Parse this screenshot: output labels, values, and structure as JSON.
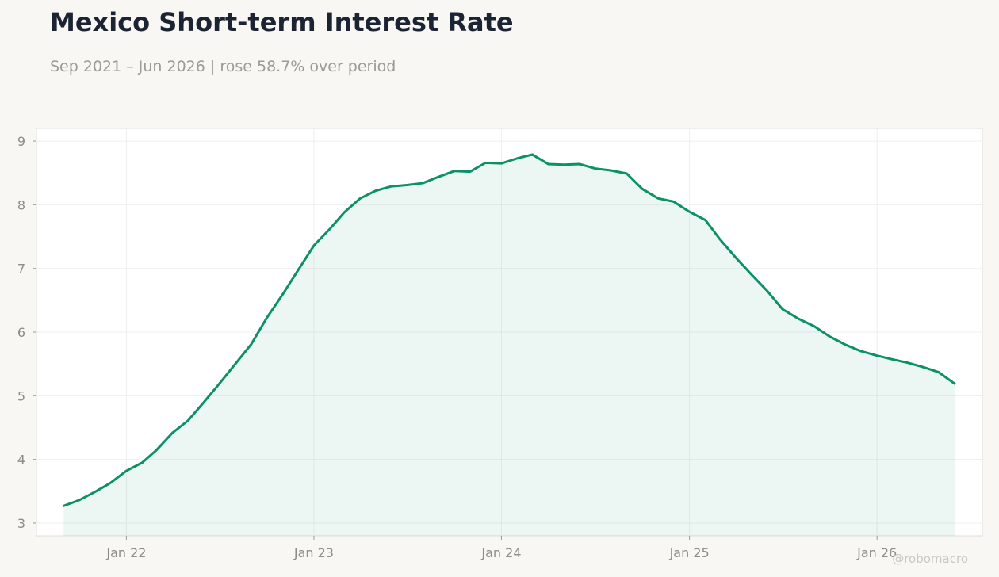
{
  "title": "Mexico Short-term Interest Rate",
  "subtitle": "Sep 2021 – Jun 2026 | rose 58.7% over period",
  "watermark": "@robomacro",
  "colors": {
    "line": "#0a9167",
    "fill": "#0a9167",
    "background": "#f8f7f4",
    "plot_background": "#ffffff",
    "grid": "#efefef",
    "axis": "#dcdcd8"
  },
  "chart_data": {
    "type": "area",
    "title": "Mexico Short-term Interest Rate",
    "subtitle": "Sep 2021 – Jun 2026 | rose 58.7% over period",
    "xlabel": "",
    "ylabel": "",
    "ylim": [
      2.8,
      9.2
    ],
    "xlim": [
      "2021-07-10",
      "2026-07-25"
    ],
    "grid": true,
    "y_ticks": [
      3,
      4,
      5,
      6,
      7,
      8,
      9
    ],
    "x_ticks": [
      {
        "date": "2022-01-01",
        "label": "Jan 22"
      },
      {
        "date": "2023-01-01",
        "label": "Jan 23"
      },
      {
        "date": "2024-01-01",
        "label": "Jan 24"
      },
      {
        "date": "2025-01-01",
        "label": "Jan 25"
      },
      {
        "date": "2026-01-01",
        "label": "Jan 26"
      }
    ],
    "series": [
      {
        "x": [
          "2021-09-01",
          "2021-10-01",
          "2021-11-01",
          "2021-12-01",
          "2022-01-01",
          "2022-02-01",
          "2022-03-01",
          "2022-04-01",
          "2022-05-01",
          "2022-06-01",
          "2022-07-01",
          "2022-08-01",
          "2022-09-01",
          "2022-10-01",
          "2022-11-01",
          "2022-12-01",
          "2023-01-01",
          "2023-02-01",
          "2023-03-01",
          "2023-04-01",
          "2023-05-01",
          "2023-06-01",
          "2023-07-01",
          "2023-08-01",
          "2023-09-01",
          "2023-10-01",
          "2023-11-01",
          "2023-12-01",
          "2024-01-01",
          "2024-02-01",
          "2024-03-01",
          "2024-04-01",
          "2024-05-01",
          "2024-06-01",
          "2024-07-01",
          "2024-08-01",
          "2024-09-01",
          "2024-10-01",
          "2024-11-01",
          "2024-12-01",
          "2025-01-01",
          "2025-02-01",
          "2025-03-01",
          "2025-04-01",
          "2025-05-01",
          "2025-06-01",
          "2025-07-01",
          "2025-08-01",
          "2025-09-01",
          "2025-10-01",
          "2025-11-01",
          "2025-12-01",
          "2026-01-01",
          "2026-02-01",
          "2026-03-01",
          "2026-04-01",
          "2026-05-01",
          "2026-06-01"
        ],
        "values": [
          3.27,
          3.36,
          3.49,
          3.63,
          3.82,
          3.95,
          4.15,
          4.42,
          4.61,
          4.9,
          5.19,
          5.5,
          5.81,
          6.22,
          6.59,
          6.97,
          7.36,
          7.62,
          7.88,
          8.1,
          8.22,
          8.29,
          8.31,
          8.34,
          8.44,
          8.53,
          8.52,
          8.66,
          8.65,
          8.73,
          8.79,
          8.64,
          8.63,
          8.64,
          8.57,
          8.54,
          8.49,
          8.25,
          8.1,
          8.05,
          7.89,
          7.76,
          7.46,
          7.17,
          6.91,
          6.65,
          6.36,
          6.21,
          6.09,
          5.93,
          5.8,
          5.7,
          5.63,
          5.57,
          5.52,
          5.45,
          5.37,
          5.19
        ]
      }
    ]
  }
}
